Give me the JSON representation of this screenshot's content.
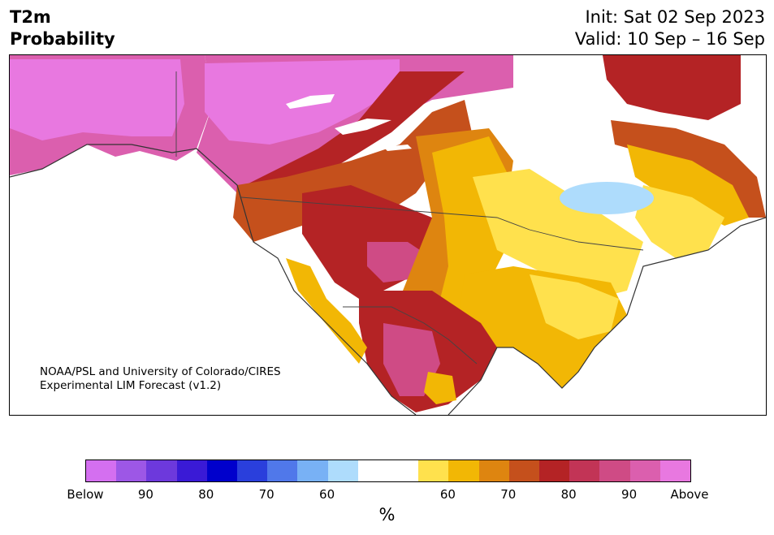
{
  "header": {
    "title_line1": "T2m",
    "title_line2": "Probability",
    "init": "Init: Sat 02 Sep 2023",
    "valid": "Valid: 10 Sep – 16 Sep"
  },
  "credit": {
    "line1": "NOAA/PSL and University of Colorado/CIRES",
    "line2": "Experimental LIM Forecast (v1.2)"
  },
  "colorbar": {
    "colors": [
      "#d46ff0",
      "#9d57e6",
      "#6d39dc",
      "#3a1ad6",
      "#0000cc",
      "#2a3fdc",
      "#5078ea",
      "#78b1f5",
      "#aedcfc",
      "#ffffff",
      "#ffffff",
      "#ffe14d",
      "#f2b705",
      "#de8510",
      "#c5501c",
      "#b42325",
      "#c23456",
      "#cf4b85",
      "#db5fae",
      "#e878e0"
    ],
    "labels": [
      "Below",
      "90",
      "80",
      "70",
      "60",
      "60",
      "70",
      "80",
      "90",
      "Above"
    ],
    "unit": "%"
  },
  "map": {
    "region": "North America",
    "fill_colors": {
      "above_high": "#e878e0",
      "above_90": "#db5fae",
      "above_85": "#cf4b85",
      "above_80": "#c23456",
      "above_75": "#b42325",
      "above_70": "#c5501c",
      "above_65": "#de8510",
      "above_60": "#f2b705",
      "above_55": "#ffe14d",
      "below_55": "#aedcfc",
      "neutral": "#ffffff"
    }
  }
}
